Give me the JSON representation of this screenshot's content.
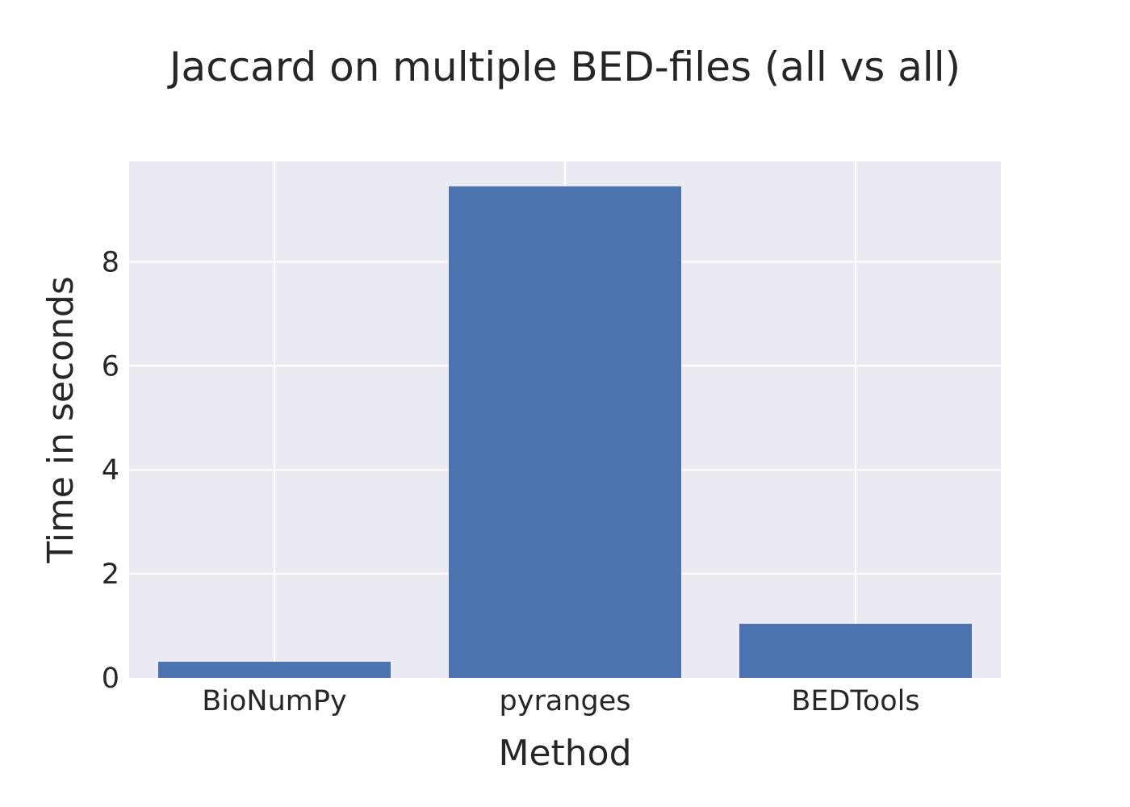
{
  "chart_data": {
    "type": "bar",
    "title": "Jaccard on multiple BED-files (all vs all)",
    "xlabel": "Method",
    "ylabel": "Time in seconds",
    "categories": [
      "BioNumPy",
      "pyranges",
      "BEDTools"
    ],
    "values": [
      0.31,
      9.45,
      1.04
    ],
    "ylim": [
      0,
      9.93
    ],
    "yticks": [
      0,
      2,
      4,
      6,
      8
    ],
    "grid": true,
    "colors": {
      "bar": "#4c72b0",
      "plot_background": "#eaeaf2",
      "grid": "#ffffff",
      "text": "#262626"
    }
  }
}
